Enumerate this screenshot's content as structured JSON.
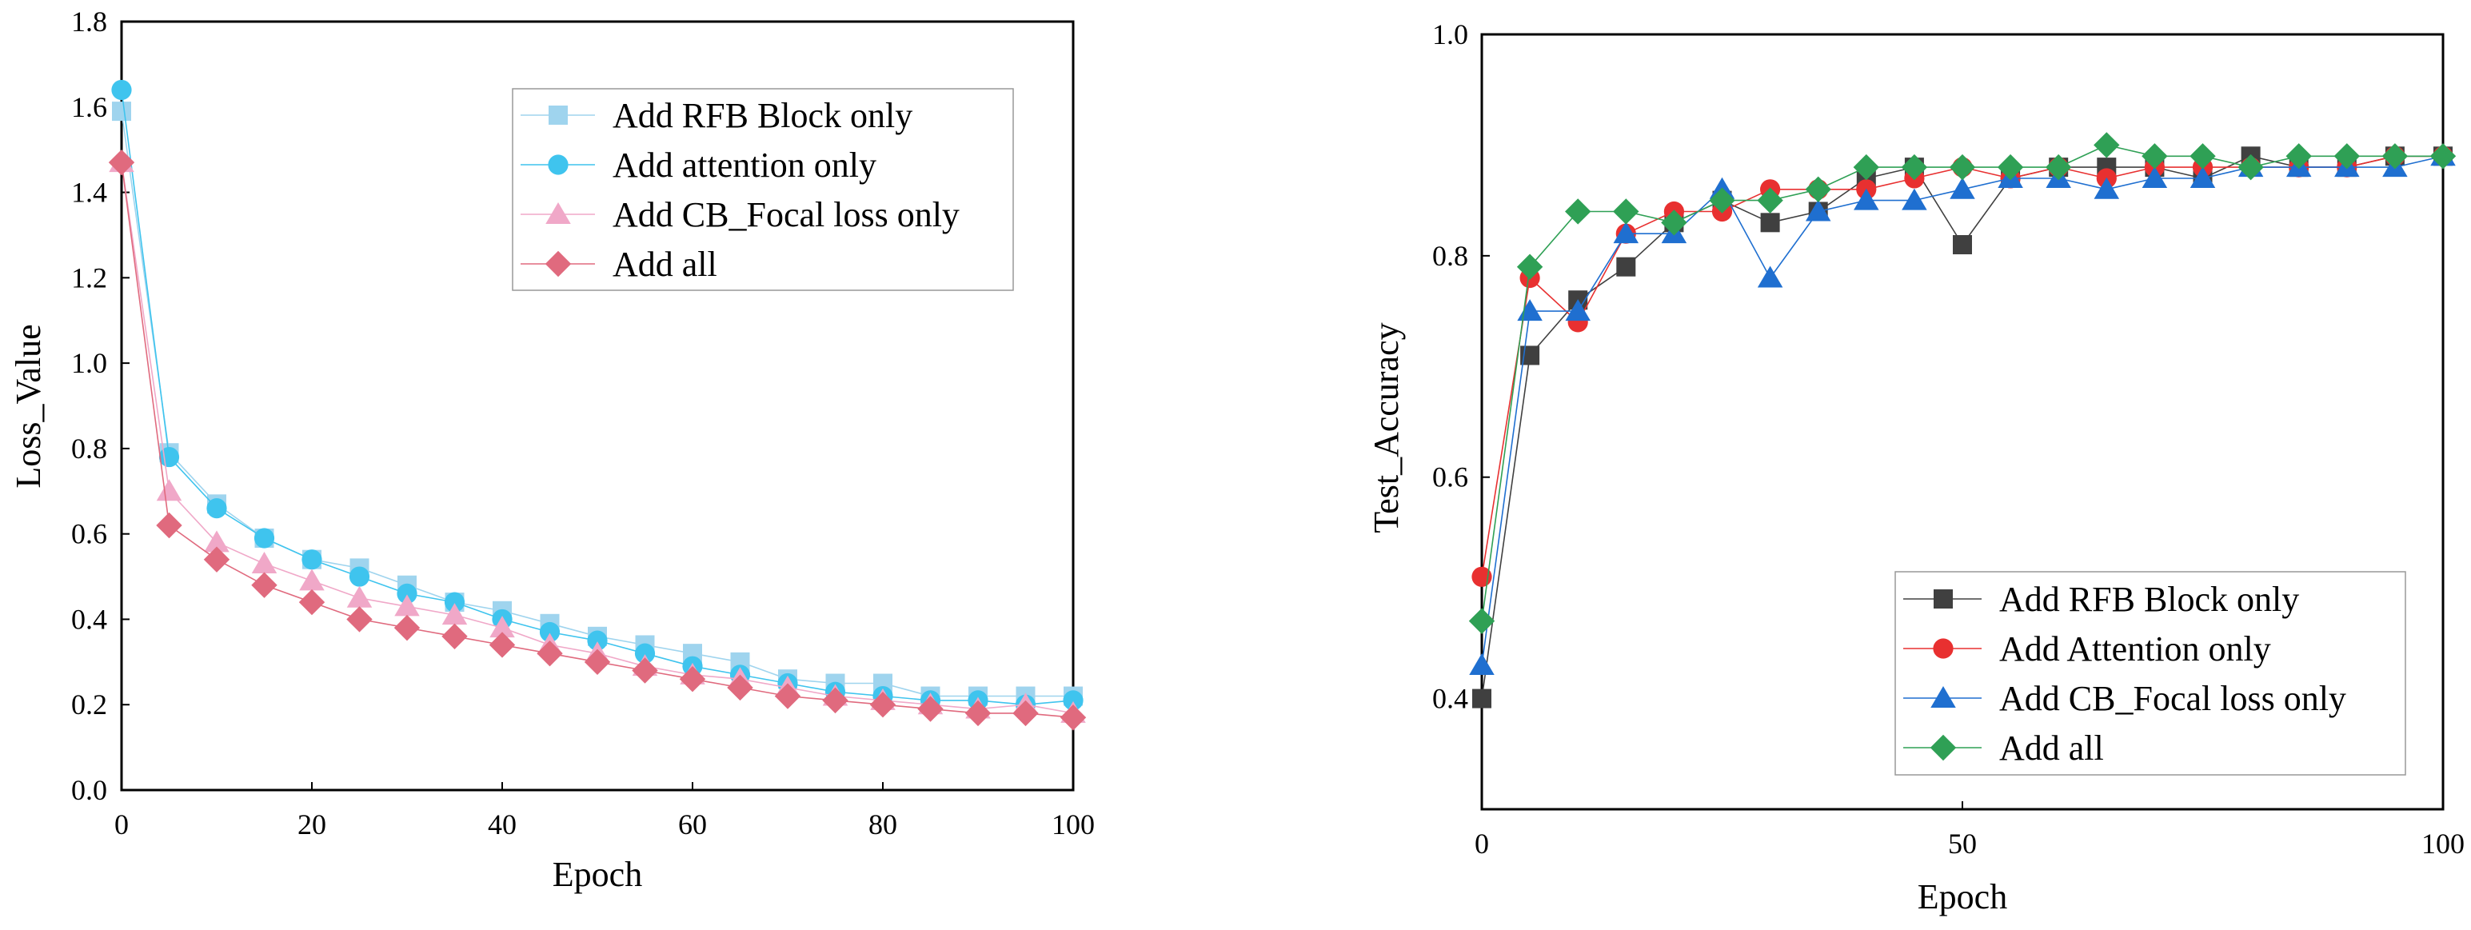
{
  "chart_data": [
    {
      "type": "line",
      "title": "",
      "xlabel": "Epoch",
      "ylabel": "Loss_Value",
      "xlim": [
        0,
        100
      ],
      "ylim": [
        0,
        1.8
      ],
      "xticks": [
        "0",
        "20",
        "40",
        "60",
        "80",
        "100"
      ],
      "yticks": [
        "0.0",
        "0.2",
        "0.4",
        "0.6",
        "0.8",
        "1.0",
        "1.2",
        "1.4",
        "1.6",
        "1.8"
      ],
      "x": [
        0,
        5,
        10,
        15,
        20,
        25,
        30,
        35,
        40,
        45,
        50,
        55,
        60,
        65,
        70,
        75,
        80,
        85,
        90,
        95,
        100
      ],
      "legend_position": "top-right",
      "series": [
        {
          "name": "Add RFB Block only",
          "color": "#9fd4ee",
          "marker": "square",
          "values": [
            1.59,
            0.79,
            0.67,
            0.59,
            0.54,
            0.52,
            0.48,
            0.44,
            0.42,
            0.39,
            0.36,
            0.34,
            0.32,
            0.3,
            0.26,
            0.25,
            0.25,
            0.22,
            0.22,
            0.22,
            0.22
          ]
        },
        {
          "name": "Add attention only",
          "color": "#3fc4ee",
          "marker": "circle",
          "values": [
            1.64,
            0.78,
            0.66,
            0.59,
            0.54,
            0.5,
            0.46,
            0.44,
            0.4,
            0.37,
            0.35,
            0.32,
            0.29,
            0.27,
            0.25,
            0.23,
            0.22,
            0.21,
            0.21,
            0.2,
            0.21
          ]
        },
        {
          "name": "Add CB_Focal loss only",
          "color": "#f0a8c8",
          "marker": "triangle",
          "values": [
            1.47,
            0.7,
            0.58,
            0.53,
            0.49,
            0.45,
            0.43,
            0.41,
            0.38,
            0.34,
            0.32,
            0.29,
            0.27,
            0.26,
            0.24,
            0.22,
            0.21,
            0.2,
            0.19,
            0.2,
            0.18
          ]
        },
        {
          "name": "Add all",
          "color": "#e06a7e",
          "marker": "diamond",
          "values": [
            1.47,
            0.62,
            0.54,
            0.48,
            0.44,
            0.4,
            0.38,
            0.36,
            0.34,
            0.32,
            0.3,
            0.28,
            0.26,
            0.24,
            0.22,
            0.21,
            0.2,
            0.19,
            0.18,
            0.18,
            0.17
          ]
        }
      ]
    },
    {
      "type": "line",
      "title": "",
      "xlabel": "Epoch",
      "ylabel": "Test_Accuracy",
      "xlim": [
        0,
        100
      ],
      "ylim": [
        0.3,
        1.0
      ],
      "xticks": [
        "0",
        "50",
        "100"
      ],
      "yticks": [
        "0.4",
        "0.6",
        "0.8",
        "1.0"
      ],
      "x": [
        0,
        5,
        10,
        15,
        20,
        25,
        30,
        35,
        40,
        45,
        50,
        55,
        60,
        65,
        70,
        75,
        80,
        85,
        90,
        95,
        100
      ],
      "legend_position": "bottom-right",
      "series": [
        {
          "name": "Add RFB Block only",
          "color": "#404040",
          "marker": "square",
          "values": [
            0.4,
            0.71,
            0.76,
            0.79,
            0.83,
            0.85,
            0.83,
            0.84,
            0.87,
            0.88,
            0.81,
            0.87,
            0.88,
            0.88,
            0.88,
            0.87,
            0.89,
            0.88,
            0.88,
            0.89,
            0.89
          ]
        },
        {
          "name": "Add Attention only",
          "color": "#e83030",
          "marker": "circle",
          "values": [
            0.51,
            0.78,
            0.74,
            0.82,
            0.84,
            0.84,
            0.86,
            0.86,
            0.86,
            0.87,
            0.88,
            0.87,
            0.88,
            0.87,
            0.88,
            0.88,
            0.88,
            0.88,
            0.88,
            0.89,
            0.89
          ]
        },
        {
          "name": "Add CB_Focal loss only",
          "color": "#1f6fd0",
          "marker": "triangle",
          "values": [
            0.43,
            0.75,
            0.75,
            0.82,
            0.82,
            0.86,
            0.78,
            0.84,
            0.85,
            0.85,
            0.86,
            0.87,
            0.87,
            0.86,
            0.87,
            0.87,
            0.88,
            0.88,
            0.88,
            0.88,
            0.89
          ]
        },
        {
          "name": "Add all",
          "color": "#2fa055",
          "marker": "diamond",
          "values": [
            0.47,
            0.79,
            0.84,
            0.84,
            0.83,
            0.85,
            0.85,
            0.86,
            0.88,
            0.88,
            0.88,
            0.88,
            0.88,
            0.9,
            0.89,
            0.89,
            0.88,
            0.89,
            0.89,
            0.89,
            0.89
          ]
        }
      ]
    }
  ]
}
